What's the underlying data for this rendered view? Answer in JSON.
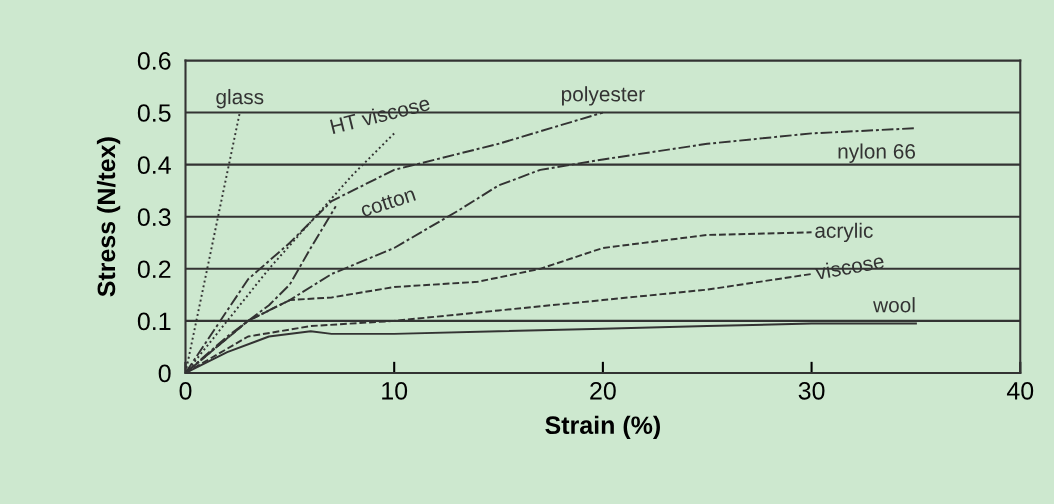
{
  "chart_data": {
    "type": "line",
    "xlabel": "Strain (%)",
    "ylabel": "Stress (N/tex)",
    "xlim": [
      0,
      40
    ],
    "ylim": [
      0,
      0.6
    ],
    "xticks": [
      0,
      10,
      20,
      30,
      40
    ],
    "yticks": [
      0,
      0.1,
      0.2,
      0.3,
      0.4,
      0.5,
      0.6
    ],
    "grid": "y",
    "legend": false,
    "marker": "none",
    "series": [
      {
        "name": "glass",
        "color": "#333333",
        "line_style": "dotted",
        "x": [
          0,
          2.6
        ],
        "values": [
          0,
          0.5
        ]
      },
      {
        "name": "HT viscose",
        "color": "#333333",
        "line_style": "dotted",
        "x": [
          0,
          2,
          4,
          6,
          8,
          10
        ],
        "values": [
          0,
          0.1,
          0.2,
          0.29,
          0.38,
          0.46
        ]
      },
      {
        "name": "polyester",
        "color": "#333333",
        "line_style": "dashdot",
        "x": [
          0,
          3,
          5,
          7,
          10,
          15,
          20
        ],
        "values": [
          0,
          0.18,
          0.25,
          0.33,
          0.39,
          0.44,
          0.5
        ]
      },
      {
        "name": "nylon 66",
        "color": "#333333",
        "line_style": "dashdot",
        "x": [
          0,
          3,
          5,
          7,
          10,
          13,
          15,
          17,
          20,
          25,
          30,
          35
        ],
        "values": [
          0,
          0.1,
          0.14,
          0.19,
          0.24,
          0.31,
          0.36,
          0.39,
          0.41,
          0.44,
          0.46,
          0.47
        ]
      },
      {
        "name": "cotton",
        "color": "#333333",
        "line_style": "dashdot",
        "x": [
          0,
          2,
          4,
          5,
          6,
          7.2
        ],
        "values": [
          0,
          0.07,
          0.13,
          0.17,
          0.24,
          0.32
        ]
      },
      {
        "name": "acrylic",
        "color": "#333333",
        "line_style": "dashed",
        "x": [
          0,
          3,
          5,
          7,
          10,
          14,
          17,
          20,
          25,
          30
        ],
        "values": [
          0,
          0.1,
          0.14,
          0.145,
          0.165,
          0.175,
          0.2,
          0.24,
          0.265,
          0.27
        ]
      },
      {
        "name": "viscose",
        "color": "#333333",
        "line_style": "dashed",
        "x": [
          0,
          3,
          6,
          10,
          15,
          20,
          25,
          30
        ],
        "values": [
          0,
          0.07,
          0.09,
          0.1,
          0.12,
          0.14,
          0.16,
          0.19
        ]
      },
      {
        "name": "wool",
        "color": "#333333",
        "line_style": "solid",
        "x": [
          0,
          2,
          4,
          6,
          7,
          10,
          15,
          20,
          25,
          30,
          35
        ],
        "values": [
          0,
          0.04,
          0.07,
          0.08,
          0.075,
          0.075,
          0.08,
          0.085,
          0.09,
          0.095,
          0.095
        ]
      }
    ]
  }
}
